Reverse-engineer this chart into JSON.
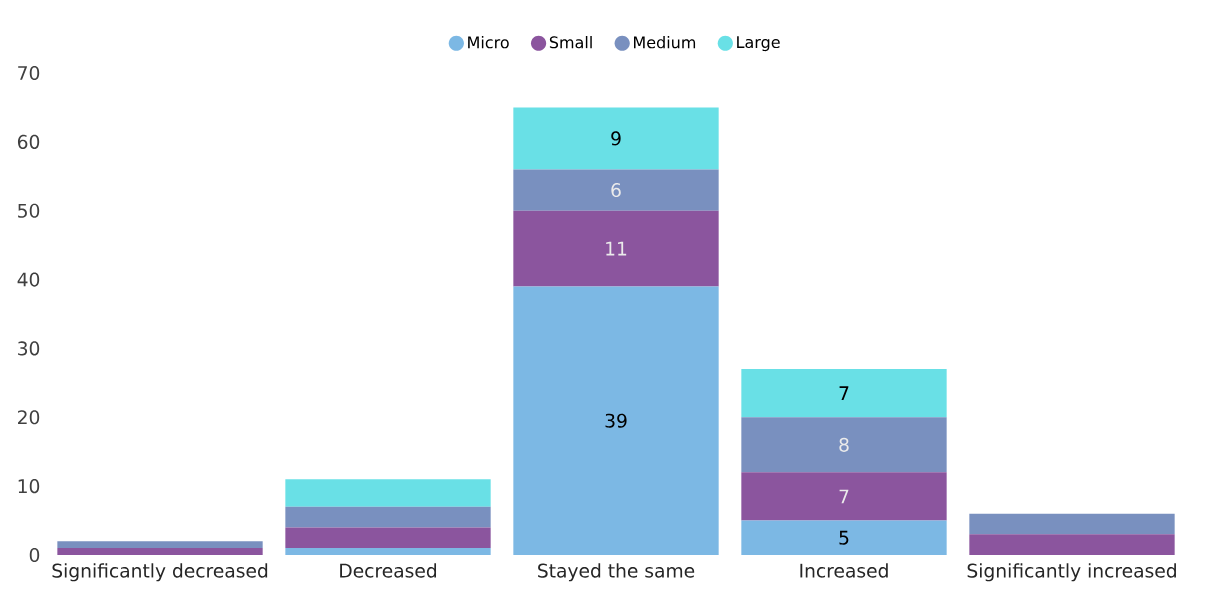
{
  "chart_data": {
    "type": "bar",
    "stacked": true,
    "categories": [
      "Significantly decreased",
      "Decreased",
      "Stayed the same",
      "Increased",
      "Significantly increased"
    ],
    "series": [
      {
        "name": "Micro",
        "color": "#7cb8e4",
        "values": [
          0,
          1,
          39,
          5,
          0
        ],
        "value_labels": [
          null,
          null,
          "39",
          "5",
          null
        ]
      },
      {
        "name": "Small",
        "color": "#8b559e",
        "values": [
          1,
          3,
          11,
          7,
          3
        ],
        "value_labels": [
          null,
          null,
          "11",
          "7",
          null
        ]
      },
      {
        "name": "Medium",
        "color": "#7990bf",
        "values": [
          1,
          3,
          6,
          8,
          3
        ],
        "value_labels": [
          null,
          null,
          "6",
          "8",
          null
        ]
      },
      {
        "name": "Large",
        "color": "#69e0e6",
        "values": [
          0,
          4,
          9,
          7,
          0
        ],
        "value_labels": [
          null,
          null,
          "9",
          "7",
          null
        ]
      }
    ],
    "ylim": [
      0,
      70
    ],
    "yticks": [
      0,
      10,
      20,
      30,
      40,
      50,
      60,
      70
    ],
    "grid": false,
    "legend": "top"
  }
}
